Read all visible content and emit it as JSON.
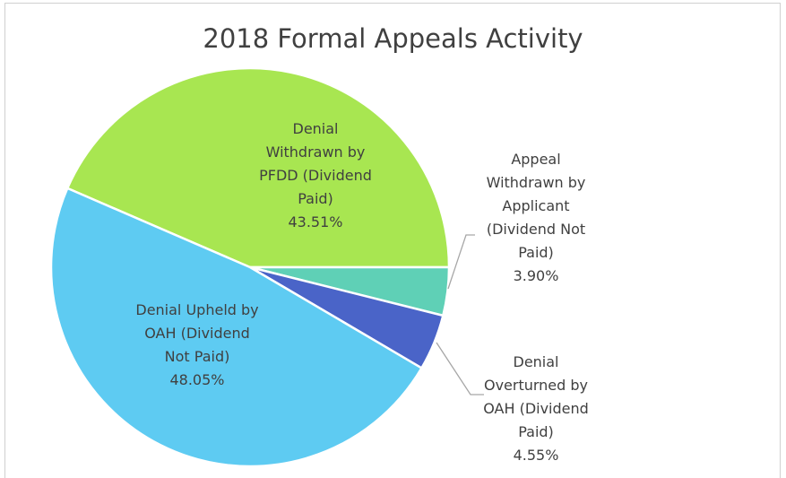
{
  "chart_data": {
    "type": "pie",
    "title": "2018 Formal Appeals Activity",
    "categories": [
      "Denial Withdrawn by PFDD (Dividend Paid)",
      "Appeal Withdrawn by Applicant (Dividend Not Paid)",
      "Denial Overturned by OAH (Dividend Paid)",
      "Denial Upheld by OAH (Dividend Not Paid)"
    ],
    "values": [
      43.51,
      3.9,
      4.55,
      48.05
    ],
    "value_labels": [
      "43.51%",
      "3.90%",
      "4.55%",
      "48.05%"
    ],
    "colors": [
      "#a8e651",
      "#5fd0b6",
      "#4a64c8",
      "#5ecbf2"
    ]
  }
}
